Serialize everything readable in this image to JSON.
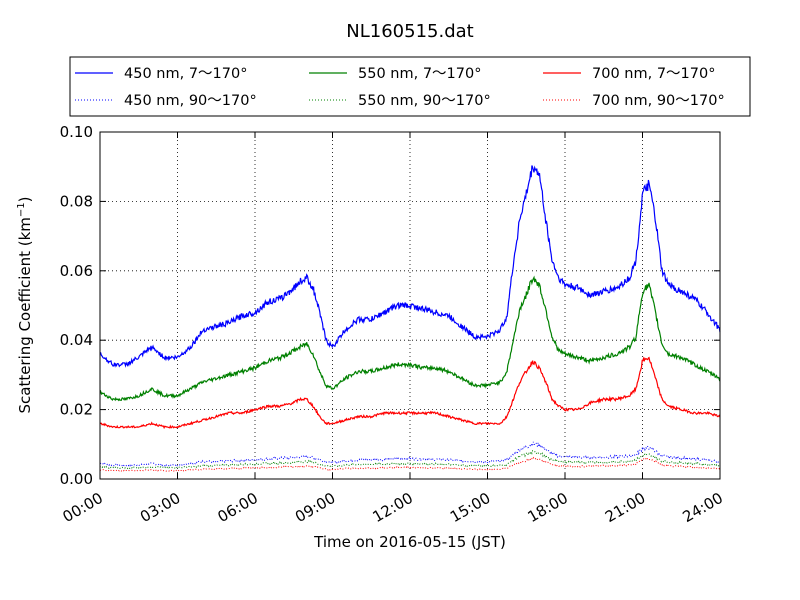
{
  "chart_data": {
    "type": "line",
    "title": "NL160515.dat",
    "xlabel": "Time on 2016-05-15 (JST)",
    "ylabel_main": "Scattering Coefficient (km",
    "ylabel_sup": "−1",
    "ylabel_close": ")",
    "xlim": [
      0,
      24
    ],
    "ylim": [
      0,
      0.1
    ],
    "grid": true,
    "legend_placement": "top",
    "x_ticks": [
      {
        "value": 0,
        "label": "00:00"
      },
      {
        "value": 3,
        "label": "03:00"
      },
      {
        "value": 6,
        "label": "06:00"
      },
      {
        "value": 9,
        "label": "09:00"
      },
      {
        "value": 12,
        "label": "12:00"
      },
      {
        "value": 15,
        "label": "15:00"
      },
      {
        "value": 18,
        "label": "18:00"
      },
      {
        "value": 21,
        "label": "21:00"
      },
      {
        "value": 24,
        "label": "24:00"
      }
    ],
    "y_ticks": [
      {
        "value": 0.0,
        "label": "0.00"
      },
      {
        "value": 0.02,
        "label": "0.02"
      },
      {
        "value": 0.04,
        "label": "0.04"
      },
      {
        "value": 0.06,
        "label": "0.06"
      },
      {
        "value": 0.08,
        "label": "0.08"
      },
      {
        "value": 0.1,
        "label": "0.10"
      }
    ],
    "x": [
      0,
      0.5,
      1,
      1.5,
      2,
      2.5,
      3,
      3.5,
      4,
      4.5,
      5,
      5.5,
      6,
      6.5,
      7,
      7.5,
      7.75,
      8,
      8.25,
      8.5,
      8.75,
      9,
      9.5,
      10,
      10.5,
      11,
      11.5,
      12,
      12.5,
      13,
      13.5,
      14,
      14.5,
      15,
      15.5,
      15.75,
      16,
      16.25,
      16.5,
      16.75,
      17,
      17.25,
      17.5,
      17.75,
      18,
      18.5,
      19,
      19.5,
      20,
      20.5,
      20.75,
      21,
      21.25,
      21.5,
      21.75,
      22,
      22.5,
      23,
      23.5,
      24
    ],
    "series": [
      {
        "name": "450 nm, 7～170°",
        "color": "#0000ff",
        "style": "solid",
        "values": [
          0.036,
          0.033,
          0.033,
          0.035,
          0.038,
          0.035,
          0.035,
          0.038,
          0.043,
          0.044,
          0.045,
          0.047,
          0.048,
          0.051,
          0.052,
          0.055,
          0.057,
          0.058,
          0.055,
          0.048,
          0.04,
          0.038,
          0.043,
          0.046,
          0.046,
          0.048,
          0.05,
          0.05,
          0.049,
          0.048,
          0.047,
          0.044,
          0.041,
          0.041,
          0.043,
          0.047,
          0.062,
          0.075,
          0.082,
          0.09,
          0.088,
          0.075,
          0.063,
          0.058,
          0.056,
          0.055,
          0.053,
          0.054,
          0.055,
          0.058,
          0.063,
          0.082,
          0.085,
          0.075,
          0.06,
          0.056,
          0.054,
          0.052,
          0.048,
          0.043
        ]
      },
      {
        "name": "550 nm, 7～170°",
        "color": "#008000",
        "style": "solid",
        "values": [
          0.025,
          0.023,
          0.023,
          0.024,
          0.026,
          0.024,
          0.024,
          0.026,
          0.028,
          0.029,
          0.03,
          0.031,
          0.032,
          0.034,
          0.035,
          0.037,
          0.038,
          0.039,
          0.036,
          0.031,
          0.027,
          0.026,
          0.029,
          0.031,
          0.031,
          0.032,
          0.033,
          0.033,
          0.032,
          0.032,
          0.031,
          0.029,
          0.027,
          0.027,
          0.028,
          0.031,
          0.04,
          0.049,
          0.053,
          0.058,
          0.056,
          0.049,
          0.041,
          0.037,
          0.036,
          0.035,
          0.034,
          0.035,
          0.036,
          0.038,
          0.041,
          0.054,
          0.056,
          0.048,
          0.039,
          0.036,
          0.035,
          0.033,
          0.031,
          0.029
        ]
      },
      {
        "name": "700 nm, 7～170°",
        "color": "#ff0000",
        "style": "solid",
        "values": [
          0.016,
          0.015,
          0.015,
          0.015,
          0.016,
          0.015,
          0.015,
          0.016,
          0.017,
          0.018,
          0.019,
          0.019,
          0.02,
          0.021,
          0.021,
          0.022,
          0.023,
          0.023,
          0.021,
          0.018,
          0.016,
          0.016,
          0.017,
          0.018,
          0.018,
          0.019,
          0.019,
          0.019,
          0.019,
          0.019,
          0.018,
          0.017,
          0.016,
          0.016,
          0.016,
          0.018,
          0.023,
          0.028,
          0.031,
          0.034,
          0.032,
          0.028,
          0.023,
          0.021,
          0.02,
          0.02,
          0.022,
          0.023,
          0.023,
          0.024,
          0.026,
          0.034,
          0.035,
          0.029,
          0.023,
          0.021,
          0.02,
          0.019,
          0.019,
          0.018
        ]
      },
      {
        "name": "450 nm, 90～170°",
        "color": "#0000ff",
        "style": "dotted",
        "values": [
          0.0045,
          0.004,
          0.004,
          0.004,
          0.0045,
          0.004,
          0.004,
          0.0045,
          0.005,
          0.005,
          0.0052,
          0.0054,
          0.0055,
          0.0058,
          0.006,
          0.0062,
          0.0064,
          0.0065,
          0.0062,
          0.0056,
          0.005,
          0.0048,
          0.0052,
          0.0055,
          0.0055,
          0.0056,
          0.0058,
          0.0058,
          0.0057,
          0.0056,
          0.0055,
          0.0052,
          0.005,
          0.005,
          0.0052,
          0.0055,
          0.007,
          0.0085,
          0.0092,
          0.0102,
          0.0098,
          0.0085,
          0.0072,
          0.0066,
          0.0064,
          0.0063,
          0.0062,
          0.0063,
          0.0064,
          0.0066,
          0.007,
          0.0088,
          0.009,
          0.008,
          0.0067,
          0.0063,
          0.0061,
          0.0058,
          0.0054,
          0.005
        ]
      },
      {
        "name": "550 nm, 90～170°",
        "color": "#008000",
        "style": "dotted",
        "values": [
          0.0035,
          0.0032,
          0.0032,
          0.0033,
          0.0035,
          0.0033,
          0.0033,
          0.0035,
          0.0038,
          0.0039,
          0.004,
          0.0042,
          0.0043,
          0.0045,
          0.0046,
          0.0048,
          0.005,
          0.005,
          0.0048,
          0.0043,
          0.0038,
          0.0037,
          0.004,
          0.0042,
          0.0042,
          0.0043,
          0.0044,
          0.0044,
          0.0044,
          0.0043,
          0.0042,
          0.004,
          0.0038,
          0.0038,
          0.0039,
          0.0042,
          0.0054,
          0.0065,
          0.0071,
          0.0078,
          0.0075,
          0.0065,
          0.0056,
          0.0051,
          0.0049,
          0.0048,
          0.0047,
          0.0048,
          0.0049,
          0.0051,
          0.0055,
          0.0068,
          0.007,
          0.0062,
          0.0052,
          0.0049,
          0.0047,
          0.0045,
          0.0042,
          0.0039
        ]
      },
      {
        "name": "700 nm, 90～170°",
        "color": "#ff0000",
        "style": "dotted",
        "values": [
          0.0026,
          0.0024,
          0.0024,
          0.0024,
          0.0026,
          0.0024,
          0.0024,
          0.0026,
          0.0028,
          0.0029,
          0.003,
          0.0031,
          0.0032,
          0.0033,
          0.0034,
          0.0036,
          0.0037,
          0.0037,
          0.0035,
          0.0032,
          0.0028,
          0.0027,
          0.003,
          0.0031,
          0.0031,
          0.0032,
          0.0033,
          0.0033,
          0.0032,
          0.0032,
          0.0031,
          0.0029,
          0.0028,
          0.0028,
          0.0029,
          0.0031,
          0.004,
          0.0049,
          0.0053,
          0.0059,
          0.0056,
          0.0049,
          0.0042,
          0.0038,
          0.0037,
          0.0036,
          0.0037,
          0.0038,
          0.0038,
          0.004,
          0.0043,
          0.0056,
          0.0058,
          0.005,
          0.004,
          0.0037,
          0.0036,
          0.0034,
          0.0032,
          0.003
        ]
      }
    ],
    "legend_rows": [
      [
        "450 nm, 7～170°",
        "550 nm, 7～170°",
        "700 nm, 7～170°"
      ],
      [
        "450 nm, 90～170°",
        "550 nm, 90～170°",
        "700 nm, 90～170°"
      ]
    ]
  }
}
